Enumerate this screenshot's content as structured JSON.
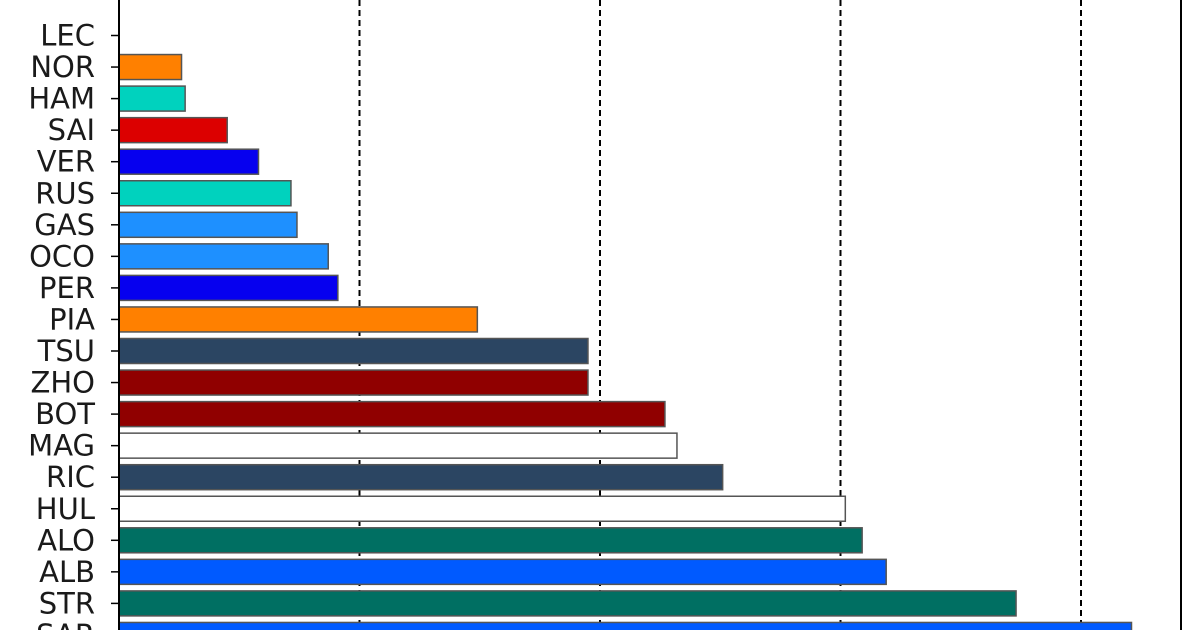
{
  "chart_data": {
    "type": "bar",
    "orientation": "horizontal",
    "title": "",
    "xlabel": "",
    "ylabel": "",
    "grid": "x, dashed",
    "categories": [
      "LEC",
      "NOR",
      "HAM",
      "SAI",
      "VER",
      "RUS",
      "GAS",
      "OCO",
      "PER",
      "PIA",
      "TSU",
      "ZHO",
      "BOT",
      "MAG",
      "RIC",
      "HUL",
      "ALO",
      "ALB",
      "STR",
      "SAR"
    ],
    "values": [
      0,
      2.6,
      2.75,
      4.5,
      5.8,
      7.15,
      7.4,
      8.7,
      9.1,
      14.9,
      19.5,
      19.5,
      22.7,
      23.2,
      25.1,
      30.2,
      30.9,
      31.9,
      37.3,
      42.1
    ],
    "colors": [
      "#dc0000",
      "#ff8000",
      "#00d2be",
      "#dc0000",
      "#0600ef",
      "#00d2be",
      "#1e90ff",
      "#1e90ff",
      "#0600ef",
      "#ff8000",
      "#2b4562",
      "#900000",
      "#900000",
      "#ffffff",
      "#2b4562",
      "#ffffff",
      "#006f62",
      "#005aff",
      "#006f62",
      "#005aff"
    ],
    "xlim": [
      0,
      44
    ]
  }
}
